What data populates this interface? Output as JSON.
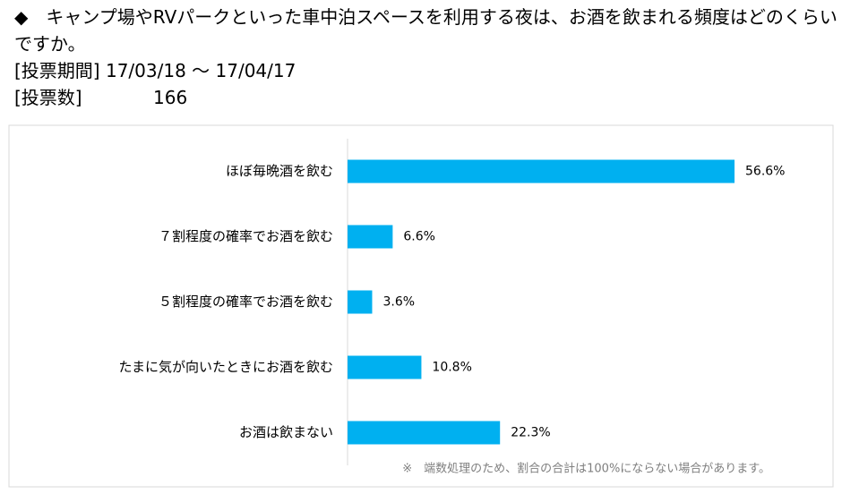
{
  "header": {
    "question": "◆　キャンプ場やRVパークといった車中泊スペースを利用する夜は、お酒を飲まれる頻度はどのくらいですか。",
    "period_label": "[投票期間]",
    "period": "17/03/18 ～ 17/04/17",
    "votes_label": "[投票数]",
    "votes": "166"
  },
  "chart_data": {
    "type": "bar",
    "orientation": "horizontal",
    "categories": [
      "ほぼ毎晩酒を飲む",
      "７割程度の確率でお酒を飲む",
      "５割程度の確率でお酒を飲む",
      "たまに気が向いたときにお酒を飲む",
      "お酒は飲まない"
    ],
    "values": [
      56.6,
      6.6,
      3.6,
      10.8,
      22.3
    ],
    "value_labels": [
      "56.6%",
      "6.6%",
      "3.6%",
      "10.8%",
      "22.3%"
    ],
    "color": "#00b0f0",
    "footnote": "※　端数処理のため、割合の合計は100%にならない場合があります。"
  }
}
